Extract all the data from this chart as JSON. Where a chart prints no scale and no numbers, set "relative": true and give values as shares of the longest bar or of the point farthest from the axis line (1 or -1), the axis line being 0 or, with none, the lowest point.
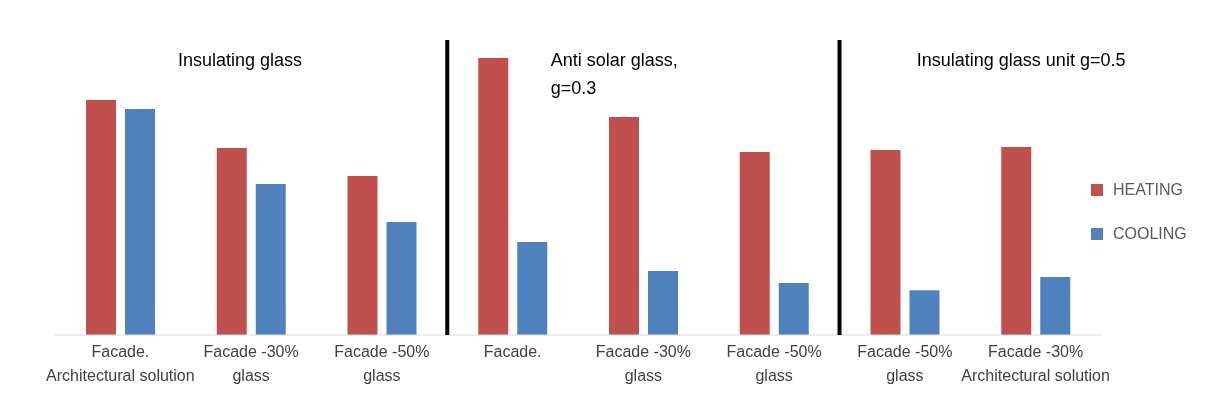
{
  "chart_data": {
    "type": "bar",
    "relative": true,
    "categories": [
      "Facade.\nArchitectural solution",
      "Facade -30%\nglass",
      "Facade -50%\nglass",
      "Facade.",
      "Facade -30%\nglass",
      "Facade -50%\nglass",
      "Facade -50%\nglass",
      "Facade -30%\nArchitectural solution"
    ],
    "series": [
      {
        "name": "HEATING",
        "color": "#c0504d",
        "values": [
          0.848,
          0.675,
          0.574,
          1,
          0.787,
          0.661,
          0.668,
          0.679
        ]
      },
      {
        "name": "COOLING",
        "color": "#4f81bd",
        "values": [
          0.816,
          0.545,
          0.408,
          0.336,
          0.231,
          0.188,
          0.162,
          0.209
        ]
      }
    ],
    "annotations": [
      "Insulating glass",
      "Anti solar glass,\ng=0.3",
      "Insulating glass unit g=0.5"
    ],
    "legend": "right"
  }
}
